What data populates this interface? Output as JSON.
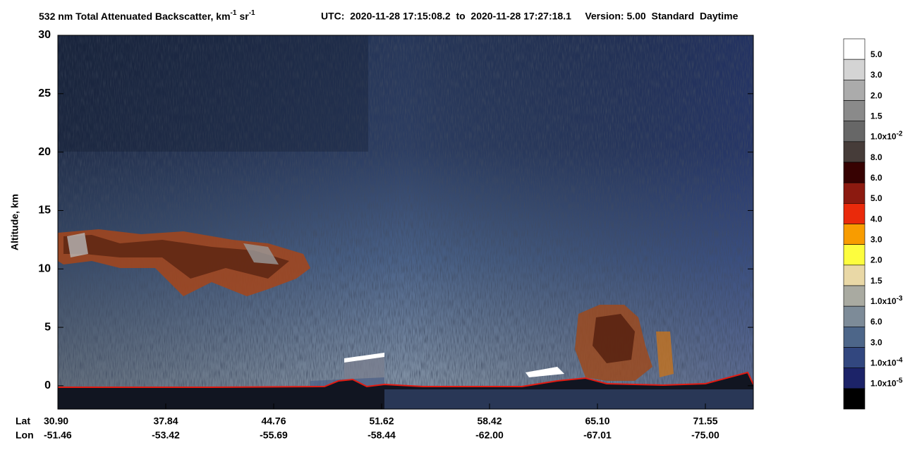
{
  "chart_data": {
    "type": "curtain",
    "title": {
      "text": "532 nm Total Attenuated Backscatter, km",
      "exp1": "-1",
      "unit2": "sr",
      "exp2": "-1"
    },
    "subtitle": "UTC:  2020-11-28 17:15:08.2  to  2020-11-28 17:27:18.1     Version: 5.00  Standard  Daytime",
    "y_label": "Altitude, km",
    "ylim": [
      -2,
      30
    ],
    "yticks": [
      0,
      5,
      10,
      15,
      20,
      25,
      30
    ],
    "x_row_labels": [
      "Lat",
      "Lon"
    ],
    "lat": [
      "30.90",
      "37.84",
      "44.76",
      "51.62",
      "58.42",
      "65.10",
      "71.55"
    ],
    "lon": [
      "-51.46",
      "-53.42",
      "-55.69",
      "-58.44",
      "-62.00",
      "-67.01",
      "-75.00"
    ],
    "colorbar": {
      "colors": [
        "#ffffff",
        "#d4d4d4",
        "#ababab",
        "#8a8a8a",
        "#676767",
        "#463c39",
        "#370202",
        "#8c1a10",
        "#ea2a0b",
        "#f89c00",
        "#fdfd3e",
        "#e9d8a6",
        "#a9aaa1",
        "#7d8b98",
        "#4d6689",
        "#32477f",
        "#1c2368",
        "#000000"
      ],
      "labels": [
        {
          "text": "5.0"
        },
        {
          "text": "3.0"
        },
        {
          "text": "2.0"
        },
        {
          "text": "1.5"
        },
        {
          "text": "1.0x10",
          "exp": "-2"
        },
        {
          "text": "8.0"
        },
        {
          "text": "6.0"
        },
        {
          "text": "5.0"
        },
        {
          "text": "4.0"
        },
        {
          "text": "3.0"
        },
        {
          "text": "2.0"
        },
        {
          "text": "1.5"
        },
        {
          "text": "1.0x10",
          "exp": "-3"
        },
        {
          "text": "6.0"
        },
        {
          "text": "3.0"
        },
        {
          "text": "1.0x10",
          "exp": "-4"
        },
        {
          "text": "1.0x10",
          "exp": "-5"
        }
      ]
    }
  }
}
